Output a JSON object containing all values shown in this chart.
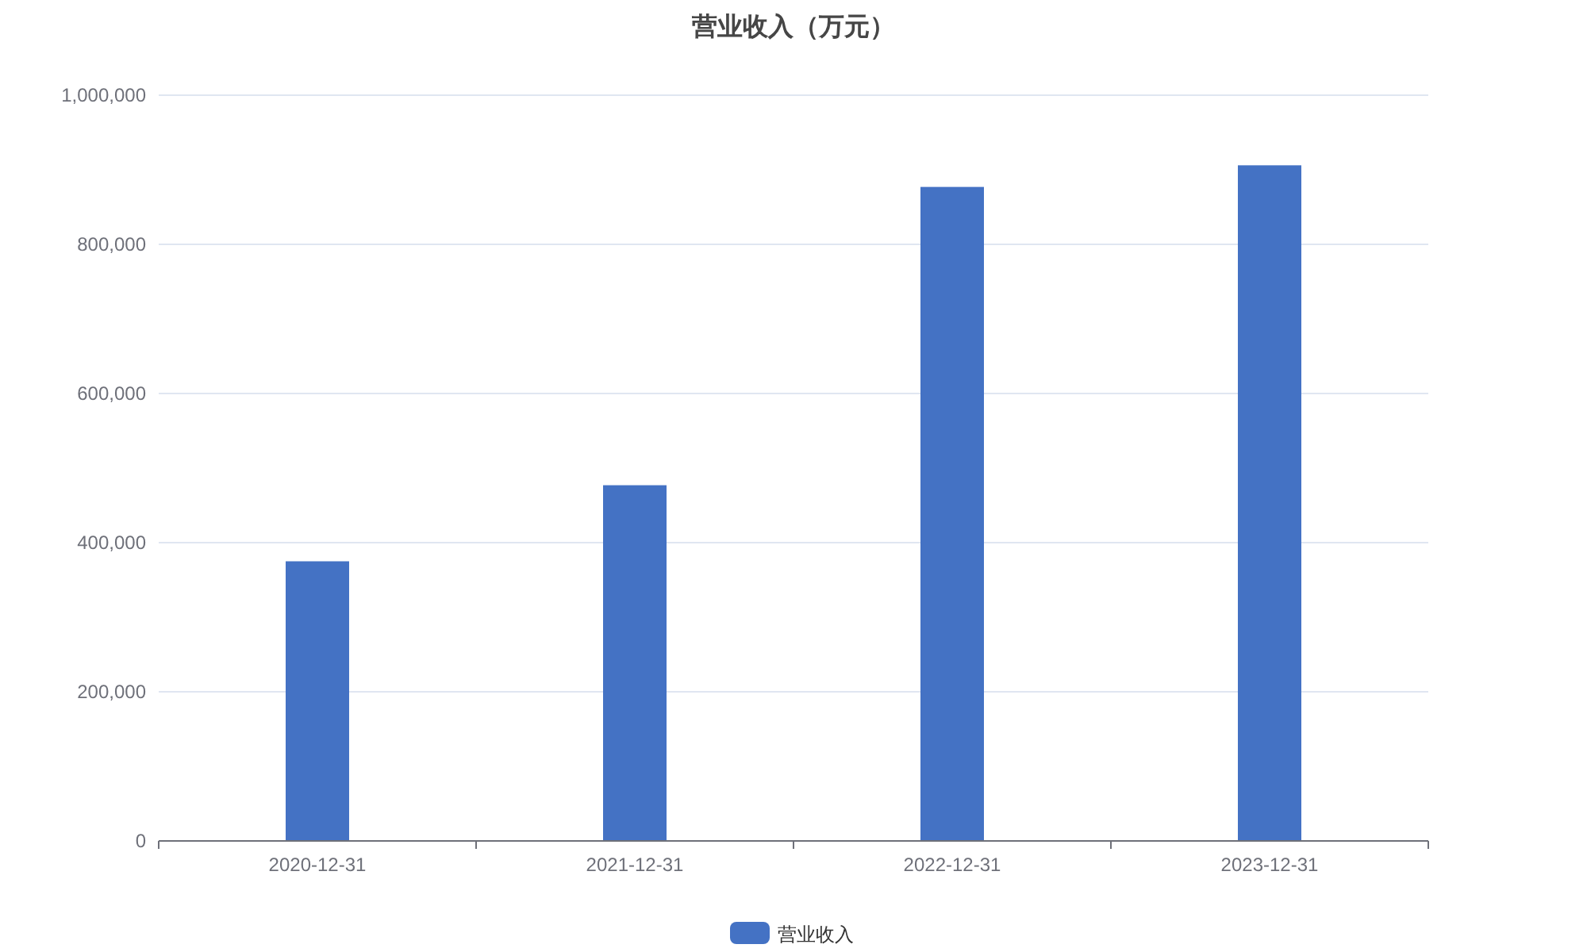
{
  "chart_data": {
    "type": "bar",
    "title": "营业收入（万元）",
    "categories": [
      "2020-12-31",
      "2021-12-31",
      "2022-12-31",
      "2023-12-31"
    ],
    "series": [
      {
        "name": "营业收入",
        "color": "#4472c4",
        "values": [
          375000,
          477000,
          877000,
          906000
        ]
      }
    ],
    "ylim": [
      0,
      1000000
    ],
    "yticks": [
      0,
      {
        "value": 200000,
        "label": "200,000"
      },
      {
        "value": 400000,
        "label": "400,000"
      },
      {
        "value": 600000,
        "label": "600,000"
      },
      {
        "value": 800000,
        "label": "800,000"
      },
      {
        "value": 1000000,
        "label": "1,000,000"
      }
    ],
    "grid": "y",
    "legend": "bottom"
  }
}
